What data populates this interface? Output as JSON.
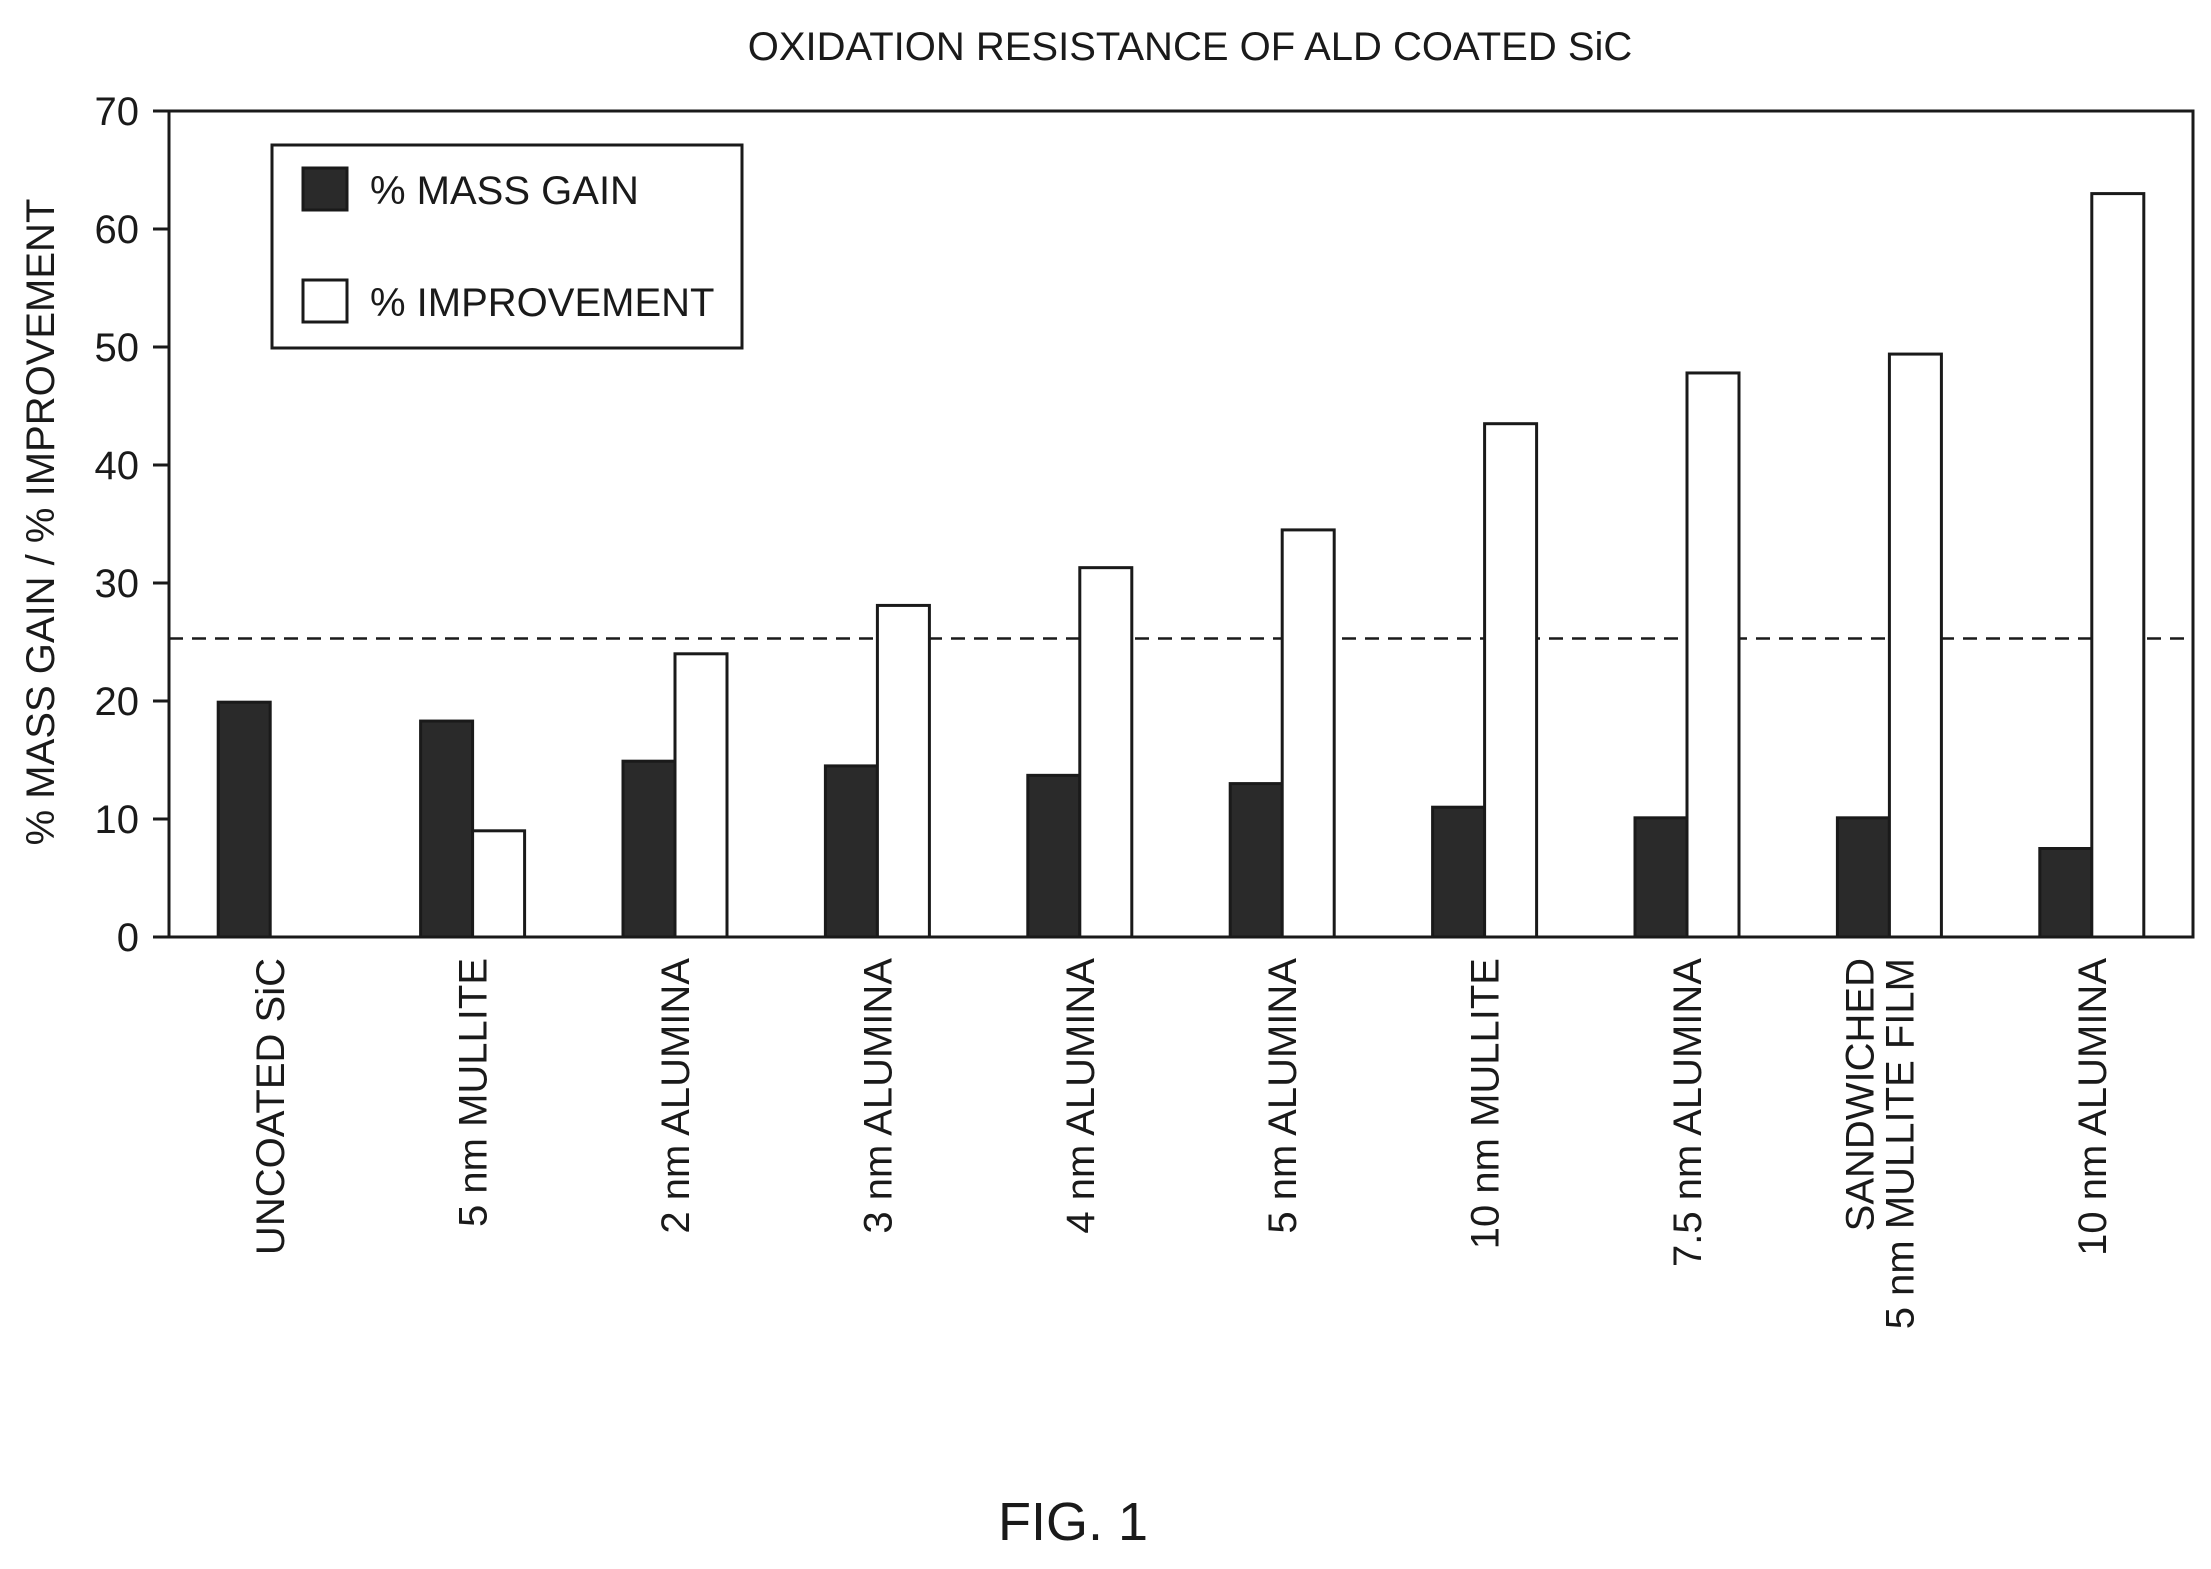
{
  "chart_data": {
    "type": "bar",
    "title": "OXIDATION RESISTANCE OF ALD COATED SiC",
    "xlabel": "",
    "ylabel": "% MASS GAIN / % IMPROVEMENT",
    "ylim": [
      0,
      70
    ],
    "yticks": [
      "0",
      "10",
      "20",
      "30",
      "40",
      "50",
      "60",
      "70"
    ],
    "categories": [
      [
        "UNCOATED SiC"
      ],
      [
        "5 nm MULLITE"
      ],
      [
        "2 nm ALUMINA"
      ],
      [
        "3 nm ALUMINA"
      ],
      [
        "4 nm ALUMINA"
      ],
      [
        "5 nm ALUMINA"
      ],
      [
        "10 nm MULLITE"
      ],
      [
        "7.5 nm ALUMINA"
      ],
      [
        "SANDWICHED",
        "5 nm MULLITE FILM"
      ],
      [
        "10 nm ALUMINA"
      ]
    ],
    "series": [
      {
        "name": "% MASS GAIN",
        "color": "#2a2a2a",
        "values": [
          19.9,
          18.3,
          14.9,
          14.5,
          13.7,
          13.0,
          11.0,
          10.1,
          10.1,
          7.5
        ]
      },
      {
        "name": "% IMPROVEMENT",
        "color": "#ffffff",
        "values": [
          null,
          9.0,
          24.0,
          28.1,
          31.3,
          34.5,
          43.5,
          47.8,
          49.4,
          63.0
        ]
      }
    ],
    "reference_line": {
      "value": 25.3,
      "style": "dashed"
    },
    "legend": "top-left",
    "grid": false
  },
  "caption": "FIG. 1"
}
